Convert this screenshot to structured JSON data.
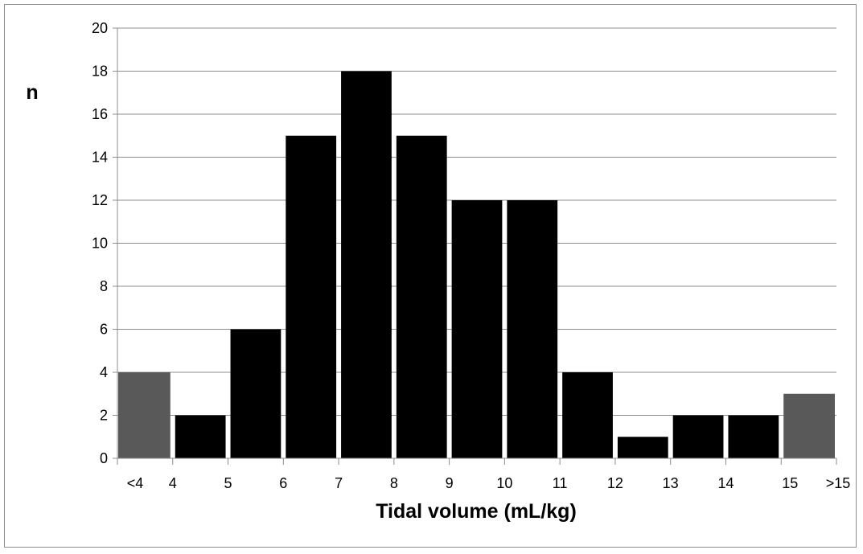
{
  "chart_data": {
    "type": "bar",
    "bins": [
      {
        "label": "<4",
        "lo": null,
        "hi": 4,
        "value": 4,
        "color": "#595959"
      },
      {
        "label": "4-5",
        "lo": 4,
        "hi": 5,
        "value": 2,
        "color": "#000000"
      },
      {
        "label": "5-6",
        "lo": 5,
        "hi": 6,
        "value": 6,
        "color": "#000000"
      },
      {
        "label": "6-7",
        "lo": 6,
        "hi": 7,
        "value": 15,
        "color": "#000000"
      },
      {
        "label": "7-8",
        "lo": 7,
        "hi": 8,
        "value": 18,
        "color": "#000000"
      },
      {
        "label": "8-9",
        "lo": 8,
        "hi": 9,
        "value": 15,
        "color": "#000000"
      },
      {
        "label": "9-10",
        "lo": 9,
        "hi": 10,
        "value": 12,
        "color": "#000000"
      },
      {
        "label": "10-11",
        "lo": 10,
        "hi": 11,
        "value": 12,
        "color": "#000000"
      },
      {
        "label": "11-12",
        "lo": 11,
        "hi": 12,
        "value": 4,
        "color": "#000000"
      },
      {
        "label": "12-13",
        "lo": 12,
        "hi": 13,
        "value": 1,
        "color": "#000000"
      },
      {
        "label": "13-14",
        "lo": 13,
        "hi": 14,
        "value": 2,
        "color": "#000000"
      },
      {
        "label": "14-15",
        "lo": 14,
        "hi": 15,
        "value": 2,
        "color": "#000000"
      },
      {
        "label": ">15",
        "lo": 15,
        "hi": null,
        "value": 3,
        "color": "#595959"
      }
    ],
    "x_tick_labels": [
      "<4",
      "4",
      "5",
      "6",
      "7",
      "8",
      "9",
      "10",
      "11",
      "12",
      "13",
      "14",
      "15",
      ">15"
    ],
    "y_ticks": [
      0,
      2,
      4,
      6,
      8,
      10,
      12,
      14,
      16,
      18,
      20
    ],
    "ylim": [
      0,
      20
    ],
    "xlabel": "Tidal volume (mL/kg)",
    "ylabel": "n",
    "grid": true,
    "gridline_color": "#8c8c8c"
  }
}
